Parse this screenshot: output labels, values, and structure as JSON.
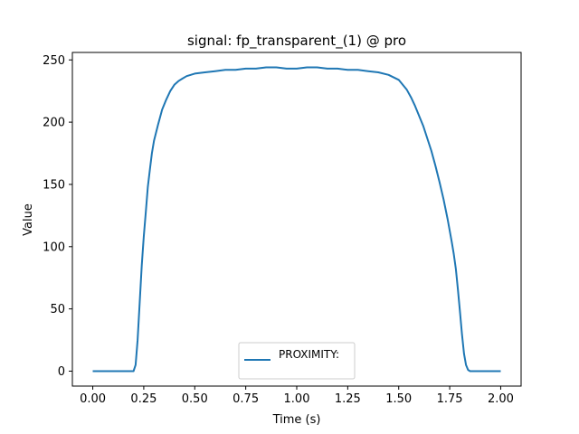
{
  "chart_data": {
    "type": "line",
    "title": "signal: fp_transparent_(1) @ pro",
    "xlabel": "Time (s)",
    "ylabel": "Value",
    "xlim": [
      -0.1,
      2.1
    ],
    "ylim": [
      -12,
      256
    ],
    "xticks": [
      0.0,
      0.25,
      0.5,
      0.75,
      1.0,
      1.25,
      1.5,
      1.75,
      2.0
    ],
    "xtick_labels": [
      "0.00",
      "0.25",
      "0.50",
      "0.75",
      "1.00",
      "1.25",
      "1.50",
      "1.75",
      "2.00"
    ],
    "yticks": [
      0,
      50,
      100,
      150,
      200,
      250
    ],
    "ytick_labels": [
      "0",
      "50",
      "100",
      "150",
      "200",
      "250"
    ],
    "grid": false,
    "legend": {
      "placement": "lower-center"
    },
    "series": [
      {
        "name": "PROXIMITY:",
        "color": "#1f77b4",
        "x": [
          0.0,
          0.05,
          0.1,
          0.15,
          0.2,
          0.21,
          0.22,
          0.23,
          0.24,
          0.25,
          0.26,
          0.27,
          0.28,
          0.29,
          0.3,
          0.32,
          0.34,
          0.36,
          0.38,
          0.4,
          0.42,
          0.44,
          0.46,
          0.48,
          0.5,
          0.55,
          0.6,
          0.65,
          0.7,
          0.75,
          0.8,
          0.85,
          0.9,
          0.95,
          1.0,
          1.05,
          1.1,
          1.15,
          1.2,
          1.25,
          1.3,
          1.35,
          1.4,
          1.45,
          1.5,
          1.52,
          1.54,
          1.56,
          1.58,
          1.6,
          1.62,
          1.64,
          1.66,
          1.68,
          1.7,
          1.72,
          1.74,
          1.76,
          1.77,
          1.78,
          1.79,
          1.8,
          1.81,
          1.82,
          1.83,
          1.84,
          1.85,
          1.9,
          1.95,
          2.0
        ],
        "y": [
          0,
          0,
          0,
          0,
          0,
          5,
          25,
          55,
          85,
          108,
          128,
          148,
          162,
          175,
          185,
          198,
          210,
          218,
          225,
          230,
          233,
          235,
          237,
          238,
          239,
          240,
          241,
          242,
          242,
          243,
          243,
          244,
          244,
          243,
          243,
          244,
          244,
          243,
          243,
          242,
          242,
          241,
          240,
          238,
          234,
          230,
          226,
          220,
          213,
          205,
          197,
          187,
          177,
          165,
          152,
          138,
          122,
          104,
          94,
          82,
          66,
          48,
          30,
          14,
          5,
          1,
          0,
          0,
          0,
          0
        ]
      }
    ]
  }
}
